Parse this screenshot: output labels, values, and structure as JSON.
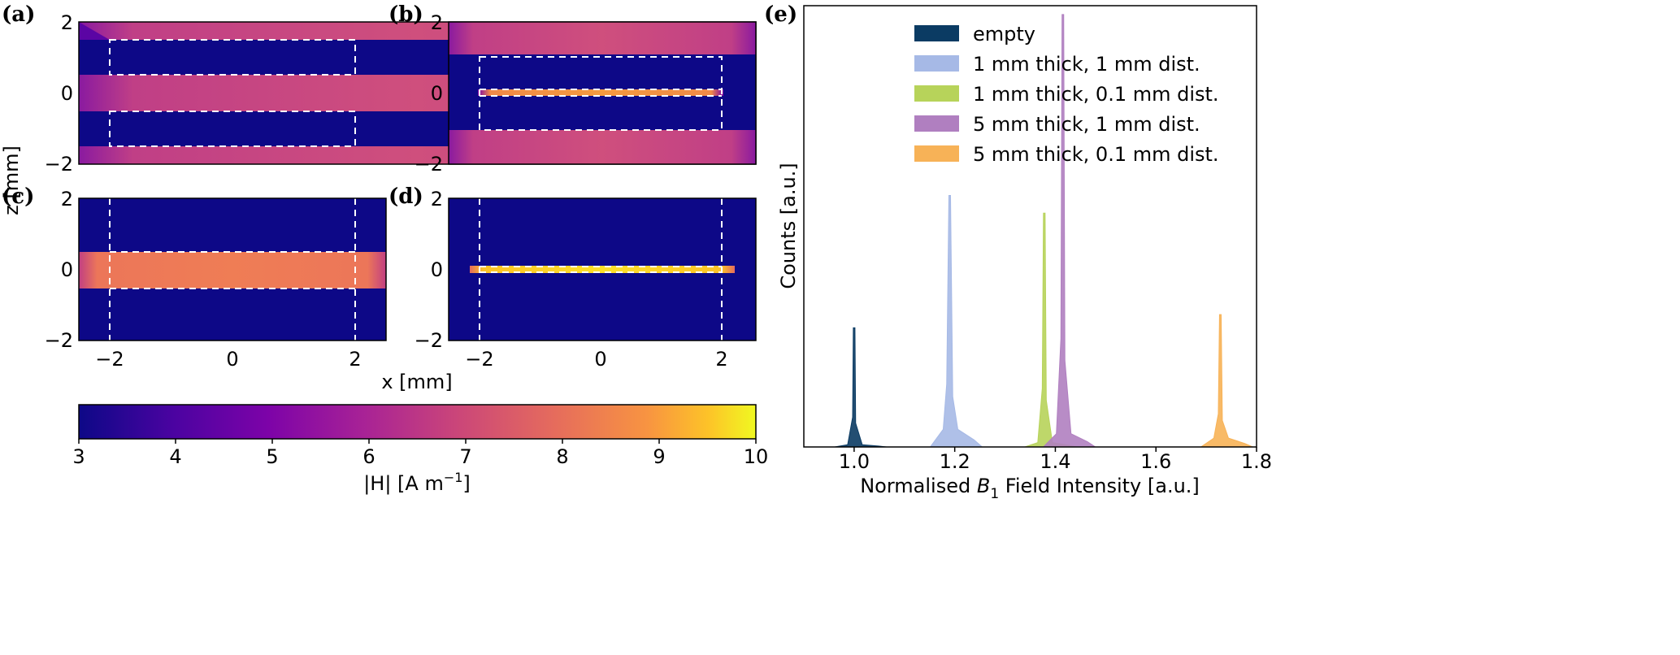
{
  "colors": {
    "background_field": "#0d0887",
    "dashed": "#ffffff",
    "empty": "#0b3b63",
    "s1": "#a6b9e6",
    "s2": "#b7d35a",
    "s3": "#b07fc0",
    "s4": "#f7b257"
  },
  "field_panels": {
    "xlabel": "x [mm]",
    "ylabel": "z [mm]",
    "x_ticks": [
      "−2",
      "0",
      "2"
    ],
    "z_ticks": [
      "2",
      "0",
      "−2"
    ],
    "panels": [
      {
        "label": "(a)",
        "description": "two 1 mm slabs, 1 mm gap"
      },
      {
        "label": "(b)",
        "description": "two 1 mm slabs, 0.1 mm gap"
      },
      {
        "label": "(c)",
        "description": "one 5 mm thick slab, 1 mm distance"
      },
      {
        "label": "(d)",
        "description": "one 5 mm thick slab, 0.1 mm distance"
      }
    ]
  },
  "colorbar": {
    "ticks": [
      "3",
      "4",
      "5",
      "6",
      "7",
      "8",
      "9",
      "10"
    ],
    "label_main": "|H| [A m",
    "label_sup": "−1",
    "label_end": "]"
  },
  "chart_data": {
    "type": "histogram",
    "panel_label": "(e)",
    "xlabel_prefix": "Normalised ",
    "xlabel_symbol": "B",
    "xlabel_sub": "1",
    "xlabel_suffix": " Field Intensity [a.u.]",
    "ylabel": "Counts [a.u.]",
    "x_range": [
      0.9,
      1.8
    ],
    "x_ticks": [
      "1.0",
      "1.2",
      "1.4",
      "1.6",
      "1.8"
    ],
    "x_tick_values": [
      1.0,
      1.2,
      1.4,
      1.6,
      1.8
    ],
    "y_range": [
      0,
      1.0
    ],
    "legend_position": "upper-center",
    "series": [
      {
        "name": "empty",
        "color_key": "empty",
        "peak_x": 1.0,
        "peak_height": 0.27,
        "tail": 0.005,
        "width": 0.003
      },
      {
        "name": "1 mm thick, 1 mm dist.",
        "color_key": "s1",
        "peak_x": 1.19,
        "peak_height": 0.57,
        "tail": 0.04,
        "width": 0.006
      },
      {
        "name": "1 mm thick, 0.1 mm dist.",
        "color_key": "s2",
        "peak_x": 1.378,
        "peak_height": 0.53,
        "tail": 0.01,
        "width": 0.004
      },
      {
        "name": "5 mm thick, 1 mm dist.",
        "color_key": "s3",
        "peak_x": 1.415,
        "peak_height": 0.98,
        "tail": 0.03,
        "width": 0.004
      },
      {
        "name": "5 mm thick, 0.1 mm dist.",
        "color_key": "s4",
        "peak_x": 1.728,
        "peak_height": 0.3,
        "tail": 0.02,
        "width": 0.004
      }
    ]
  }
}
